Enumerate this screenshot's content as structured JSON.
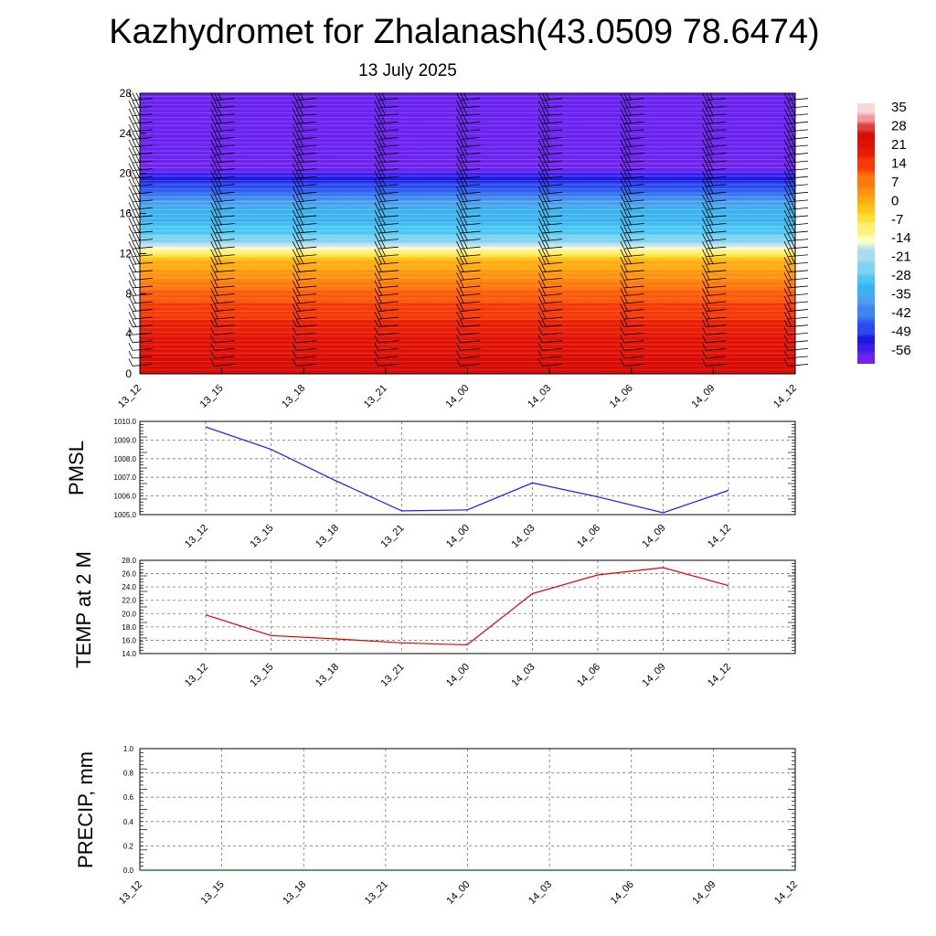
{
  "header": {
    "title": "Kazhydromet for Zhalanash(43.0509 78.6474)",
    "date": "13 July 2025"
  },
  "colors": {
    "pmsl_line": "#1a1aff",
    "temp_line": "#e00000",
    "precip_line": "#2e7d32",
    "barb": "#000000"
  },
  "chart_data": [
    {
      "type": "heatmap",
      "name": "cross-section",
      "x": [
        "13_12",
        "13_15",
        "13_18",
        "13_21",
        "14_00",
        "14_03",
        "14_06",
        "14_09",
        "14_12"
      ],
      "y_ticks": [
        "0",
        "4",
        "8",
        "12",
        "16",
        "20",
        "24",
        "28"
      ],
      "ylim": [
        0,
        28
      ],
      "colorbar": {
        "labels": [
          "35",
          "28",
          "21",
          "14",
          "7",
          "0",
          "-7",
          "-14",
          "-21",
          "-28",
          "-35",
          "-42",
          "-49",
          "-56"
        ],
        "range": [
          -60,
          39
        ]
      },
      "temperature_profile": {
        "heights": [
          0,
          2,
          4,
          6,
          8,
          10,
          11.5,
          12.2,
          13,
          14,
          15,
          16,
          17,
          18,
          19,
          20,
          21,
          22,
          23,
          28
        ],
        "values": [
          26,
          25,
          21,
          17,
          12,
          5,
          0,
          -10,
          -20,
          -26,
          -30,
          -32,
          -36,
          -42,
          -48,
          -55,
          -60,
          -58,
          -58,
          -58
        ]
      },
      "wind_barbs": "black barbs at each forecast time from 0 to 28"
    },
    {
      "type": "line",
      "name": "pmsl",
      "ylabel": "PMSL",
      "categories": [
        "13_12",
        "13_15",
        "13_18",
        "13_21",
        "14_00",
        "14_03",
        "14_06",
        "14_09",
        "14_12"
      ],
      "series": [
        {
          "values": [
            1009.7,
            1008.5,
            1006.8,
            1005.2,
            1005.25,
            1006.7,
            1005.95,
            1005.1,
            1006.3
          ]
        }
      ],
      "ylim": [
        1005.0,
        1010.0
      ],
      "y_ticks": [
        "1005.0",
        "1006.0",
        "1007.0",
        "1008.0",
        "1009.0",
        "1010.0"
      ],
      "grid": true
    },
    {
      "type": "line",
      "name": "temp",
      "ylabel": "TEMP at 2 M",
      "categories": [
        "13_12",
        "13_15",
        "13_18",
        "13_21",
        "14_00",
        "14_03",
        "14_06",
        "14_09",
        "14_12"
      ],
      "series": [
        {
          "values": [
            19.8,
            16.7,
            16.2,
            15.6,
            15.3,
            23.0,
            25.8,
            26.9,
            24.2
          ]
        }
      ],
      "ylim": [
        14.0,
        28.0
      ],
      "y_ticks": [
        "14.0",
        "16.0",
        "18.0",
        "20.0",
        "22.0",
        "24.0",
        "26.0",
        "28.0"
      ],
      "grid": true
    },
    {
      "type": "line",
      "name": "precip",
      "ylabel": "PRECIP, mm",
      "categories": [
        "13_12",
        "13_15",
        "13_18",
        "13_21",
        "14_00",
        "14_03",
        "14_06",
        "14_09",
        "14_12"
      ],
      "series": [
        {
          "values": [
            0,
            0,
            0,
            0,
            0,
            0,
            0,
            0,
            0
          ]
        }
      ],
      "ylim": [
        0.0,
        1.0
      ],
      "y_ticks": [
        "0.0",
        "0.2",
        "0.4",
        "0.6",
        "0.8",
        "1.0"
      ],
      "grid": true
    }
  ]
}
